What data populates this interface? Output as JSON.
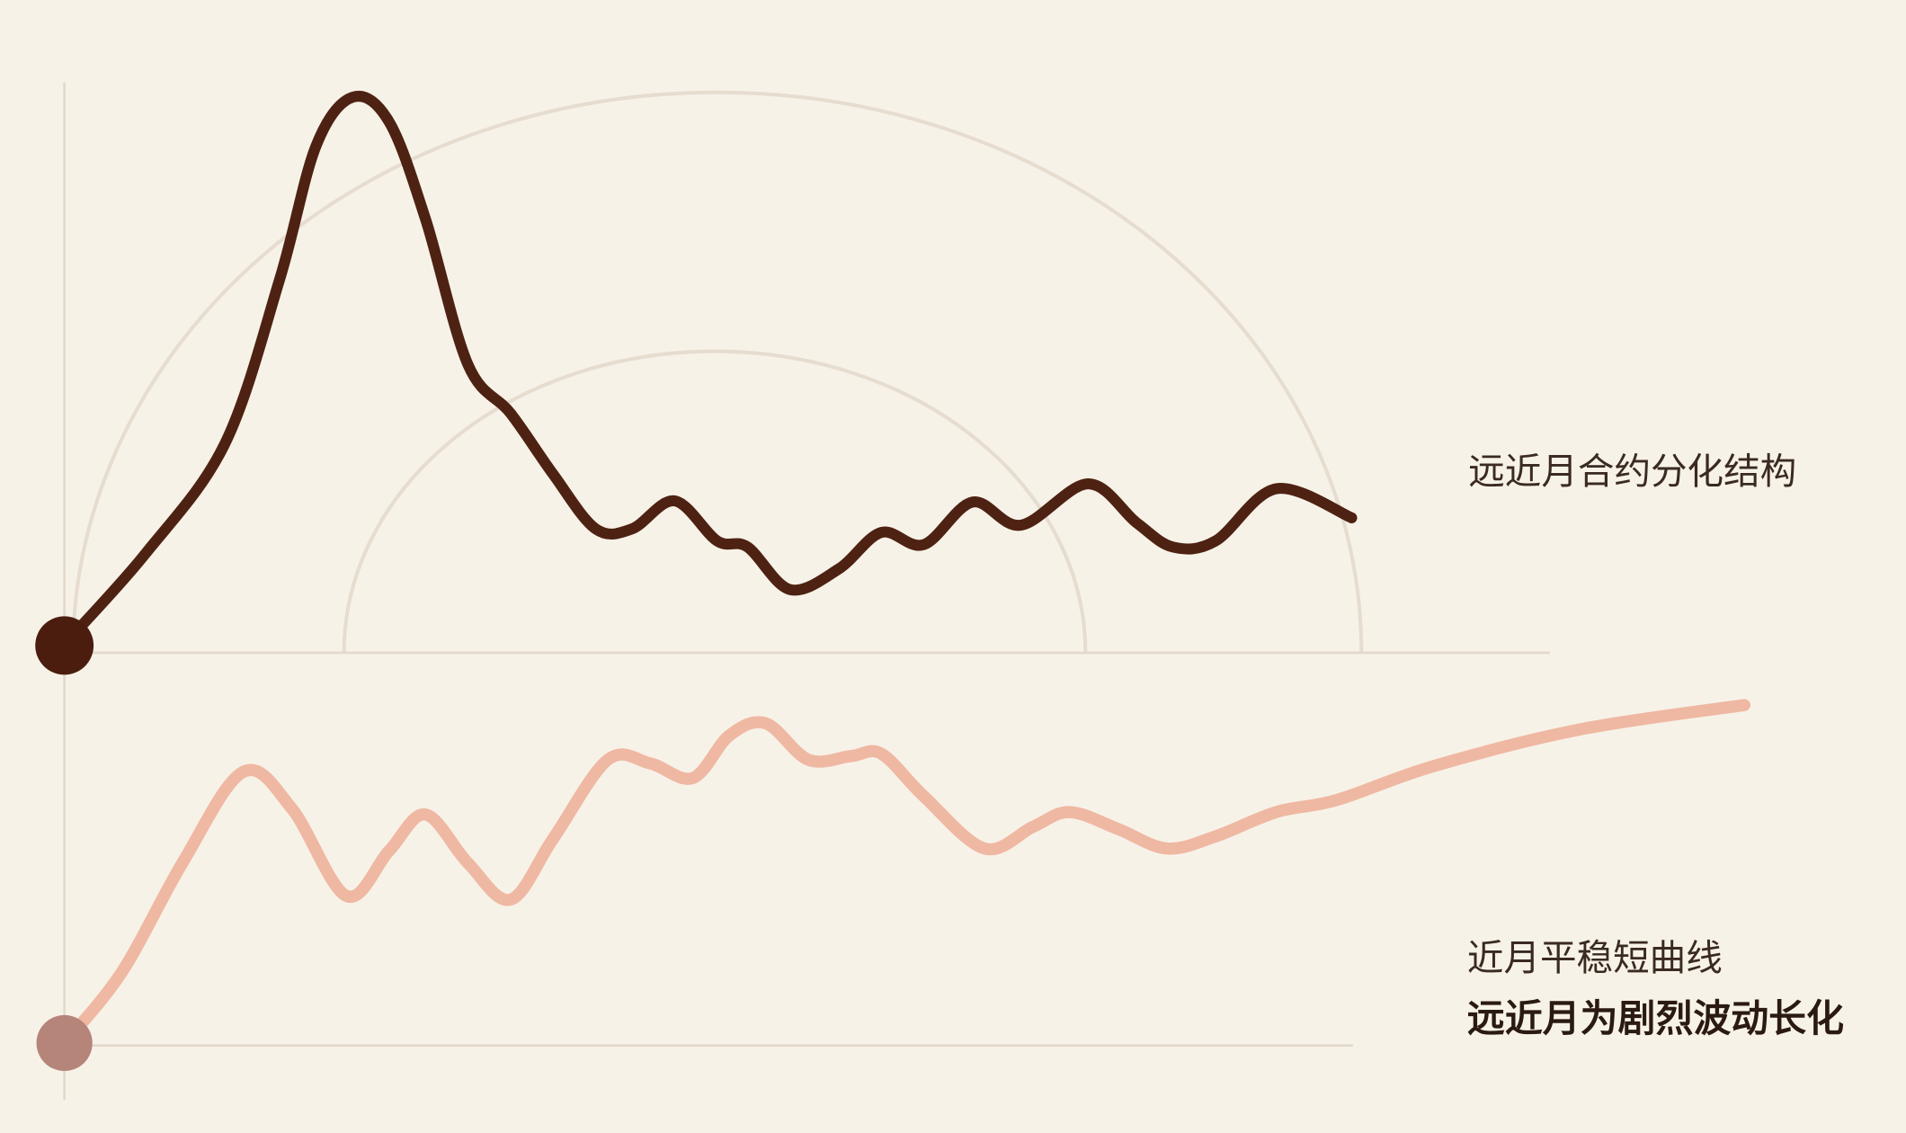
{
  "labels": {
    "upper": "远近月合约分化结构",
    "lower_1": "近月平稳短曲线",
    "lower_2": "远近月为剧烈波动长化"
  }
}
